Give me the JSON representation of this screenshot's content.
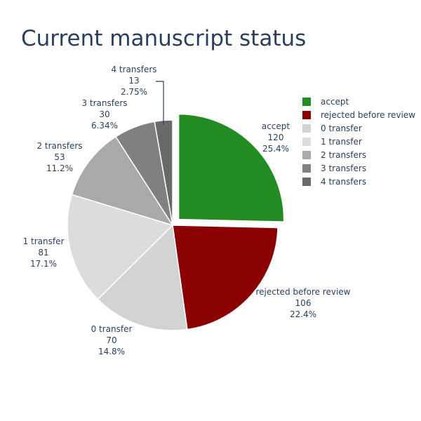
{
  "chart_data": {
    "type": "pie",
    "title": "Current manuscript status",
    "legend_position": "right",
    "slices": [
      {
        "label": "accept",
        "value": 120,
        "percent_text": "25.4%",
        "color": "#228b22",
        "pulled": true
      },
      {
        "label": "rejected before review",
        "value": 106,
        "percent_text": "22.4%",
        "color": "#8b0000"
      },
      {
        "label": "0 transfer",
        "value": 70,
        "percent_text": "14.8%",
        "color": "#d3d3d3"
      },
      {
        "label": "1 transfer",
        "value": 81,
        "percent_text": "17.1%",
        "color": "#dcdcdc"
      },
      {
        "label": "2 transfers",
        "value": 53,
        "percent_text": "11.2%",
        "color": "#a9a9a9"
      },
      {
        "label": "3 transfers",
        "value": 30,
        "percent_text": "6.34%",
        "color": "#808080"
      },
      {
        "label": "4 transfers",
        "value": 13,
        "percent_text": "2.75%",
        "color": "#696969"
      }
    ]
  }
}
